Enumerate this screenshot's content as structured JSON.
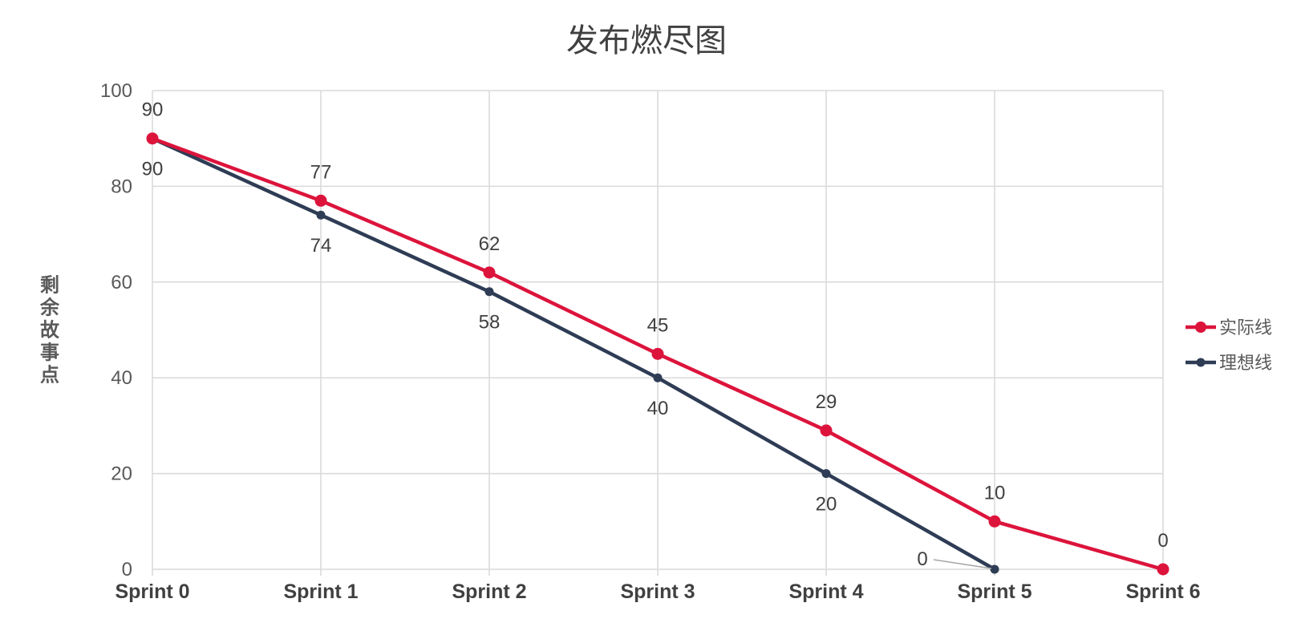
{
  "chart_data": {
    "type": "line",
    "title": "发布燃尽图",
    "xlabel": "",
    "ylabel": "剩余故事点",
    "categories": [
      "Sprint 0",
      "Sprint 1",
      "Sprint 2",
      "Sprint 3",
      "Sprint 4",
      "Sprint 5",
      "Sprint 6"
    ],
    "ylim": [
      0,
      100
    ],
    "yticks": [
      0,
      20,
      40,
      60,
      80,
      100
    ],
    "grid": true,
    "legend_position": "right",
    "series": [
      {
        "name": "实际线",
        "values": [
          90,
          77,
          62,
          45,
          29,
          10,
          0
        ],
        "color": "#dc143c"
      },
      {
        "name": "理想线",
        "values": [
          90,
          74,
          58,
          40,
          20,
          0,
          null
        ],
        "color": "#2e3c55"
      }
    ]
  }
}
